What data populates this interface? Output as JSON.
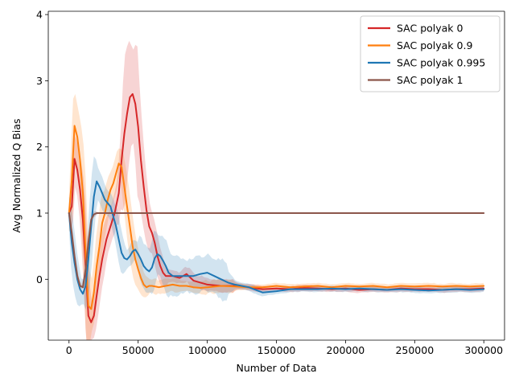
{
  "chart_data": {
    "type": "line",
    "title": "",
    "xlabel": "Number of Data",
    "ylabel": "Avg Normalized Q Bias",
    "xlim": [
      -15000,
      315000
    ],
    "ylim": [
      -0.92,
      4.05
    ],
    "xticks": [
      0,
      50000,
      100000,
      150000,
      200000,
      250000,
      300000
    ],
    "xtick_labels": [
      "0",
      "50000",
      "100000",
      "150000",
      "200000",
      "250000",
      "300000"
    ],
    "yticks": [
      0,
      1,
      2,
      3,
      4
    ],
    "ytick_labels": [
      "0",
      "1",
      "2",
      "3",
      "4"
    ],
    "grid": false,
    "legend_position": "top-right",
    "series": [
      {
        "name": "SAC polyak 0",
        "color": "#d62728",
        "x": [
          0,
          2000,
          4000,
          6000,
          8000,
          10000,
          12000,
          14000,
          16000,
          18000,
          20000,
          22000,
          24000,
          27000,
          30000,
          33000,
          36000,
          38000,
          40000,
          42000,
          44000,
          46000,
          48000,
          50000,
          52000,
          54000,
          56000,
          58000,
          60000,
          62000,
          64000,
          66000,
          68000,
          70000,
          72000,
          75000,
          80000,
          85000,
          90000,
          95000,
          100000,
          110000,
          120000,
          130000,
          140000,
          150000,
          160000,
          170000,
          180000,
          190000,
          200000,
          210000,
          220000,
          230000,
          240000,
          250000,
          260000,
          270000,
          280000,
          290000,
          300000
        ],
        "y": [
          1.0,
          1.1,
          1.82,
          1.65,
          1.35,
          0.9,
          0.2,
          -0.55,
          -0.65,
          -0.55,
          -0.25,
          0.05,
          0.3,
          0.6,
          0.8,
          1.0,
          1.3,
          1.8,
          2.2,
          2.5,
          2.75,
          2.8,
          2.65,
          2.3,
          1.8,
          1.4,
          1.05,
          0.8,
          0.7,
          0.55,
          0.35,
          0.2,
          0.1,
          0.05,
          0.05,
          0.05,
          0.02,
          0.08,
          -0.02,
          -0.05,
          -0.08,
          -0.1,
          -0.1,
          -0.12,
          -0.15,
          -0.14,
          -0.15,
          -0.13,
          -0.14,
          -0.15,
          -0.14,
          -0.16,
          -0.15,
          -0.16,
          -0.14,
          -0.15,
          -0.15,
          -0.16,
          -0.15,
          -0.15,
          -0.14
        ]
      },
      {
        "name": "SAC polyak 0.9",
        "color": "#ff7f0e",
        "x": [
          0,
          2000,
          4000,
          6000,
          8000,
          10000,
          12000,
          14000,
          16000,
          18000,
          20000,
          22000,
          24000,
          26000,
          28000,
          30000,
          32000,
          34000,
          36000,
          38000,
          40000,
          42000,
          44000,
          46000,
          48000,
          50000,
          52000,
          54000,
          56000,
          58000,
          60000,
          65000,
          70000,
          75000,
          80000,
          85000,
          90000,
          95000,
          100000,
          110000,
          120000,
          130000,
          140000,
          150000,
          160000,
          170000,
          180000,
          190000,
          200000,
          210000,
          220000,
          230000,
          240000,
          250000,
          260000,
          270000,
          280000,
          290000,
          300000
        ],
        "y": [
          1.0,
          1.5,
          2.32,
          2.15,
          1.8,
          1.3,
          0.4,
          -0.4,
          -0.45,
          -0.2,
          0.2,
          0.5,
          0.85,
          1.0,
          1.2,
          1.35,
          1.45,
          1.6,
          1.75,
          1.7,
          1.4,
          1.1,
          0.8,
          0.5,
          0.3,
          0.15,
          0.02,
          -0.08,
          -0.12,
          -0.1,
          -0.1,
          -0.12,
          -0.1,
          -0.08,
          -0.1,
          -0.1,
          -0.12,
          -0.13,
          -0.12,
          -0.1,
          -0.11,
          -0.12,
          -0.12,
          -0.1,
          -0.12,
          -0.11,
          -0.1,
          -0.12,
          -0.1,
          -0.11,
          -0.1,
          -0.12,
          -0.1,
          -0.11,
          -0.1,
          -0.11,
          -0.1,
          -0.11,
          -0.1
        ]
      },
      {
        "name": "SAC polyak 0.995",
        "color": "#1f77b4",
        "x": [
          0,
          2000,
          4000,
          6000,
          8000,
          10000,
          12000,
          14000,
          16000,
          18000,
          20000,
          22000,
          24000,
          26000,
          28000,
          30000,
          32000,
          34000,
          36000,
          38000,
          40000,
          42000,
          44000,
          46000,
          48000,
          50000,
          52000,
          54000,
          56000,
          58000,
          60000,
          62000,
          64000,
          66000,
          68000,
          70000,
          72000,
          75000,
          80000,
          85000,
          90000,
          95000,
          100000,
          105000,
          110000,
          115000,
          120000,
          130000,
          140000,
          150000,
          160000,
          170000,
          180000,
          190000,
          200000,
          210000,
          220000,
          230000,
          240000,
          250000,
          260000,
          270000,
          280000,
          290000,
          300000
        ],
        "y": [
          1.0,
          0.55,
          0.25,
          0.0,
          -0.15,
          -0.22,
          -0.1,
          0.3,
          0.8,
          1.25,
          1.48,
          1.4,
          1.3,
          1.2,
          1.15,
          1.1,
          0.95,
          0.8,
          0.6,
          0.4,
          0.32,
          0.3,
          0.35,
          0.42,
          0.45,
          0.38,
          0.3,
          0.2,
          0.15,
          0.12,
          0.18,
          0.32,
          0.38,
          0.35,
          0.28,
          0.2,
          0.1,
          0.05,
          0.05,
          0.05,
          0.05,
          0.08,
          0.1,
          0.05,
          0.0,
          -0.05,
          -0.08,
          -0.12,
          -0.2,
          -0.18,
          -0.15,
          -0.15,
          -0.15,
          -0.14,
          -0.15,
          -0.14,
          -0.15,
          -0.16,
          -0.15,
          -0.16,
          -0.17,
          -0.16,
          -0.15,
          -0.16,
          -0.15
        ]
      },
      {
        "name": "SAC polyak 1",
        "color": "#8c564b",
        "x": [
          0,
          2000,
          4000,
          6000,
          8000,
          10000,
          12000,
          14000,
          16000,
          18000,
          20000,
          22000,
          25000,
          50000,
          100000,
          150000,
          200000,
          250000,
          300000
        ],
        "y": [
          1.0,
          0.7,
          0.35,
          0.05,
          -0.1,
          -0.12,
          0.15,
          0.55,
          0.9,
          0.98,
          1.0,
          1.0,
          1.0,
          1.0,
          1.0,
          1.0,
          1.0,
          1.0,
          1.0
        ]
      }
    ]
  }
}
